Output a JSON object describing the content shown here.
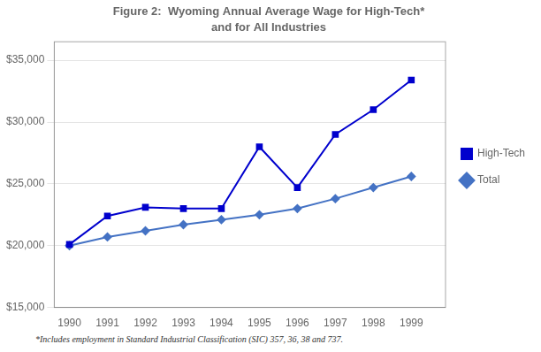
{
  "chart_data": {
    "type": "line",
    "title": "Figure 2:  Wyoming Annual Average Wage for High-Tech*",
    "subtitle": "and for All Industries",
    "annotations": [
      "*Includes employment in Standard Industrial Classification (SIC) 357, 36, 38 and 737."
    ],
    "x": [
      1990,
      1991,
      1992,
      1993,
      1994,
      1995,
      1996,
      1997,
      1998,
      1999
    ],
    "series": [
      {
        "name": "High-Tech",
        "color": "#0000CD",
        "marker": "square",
        "values": [
          20100,
          22400,
          23100,
          23000,
          23000,
          28000,
          24700,
          29000,
          31000,
          33400
        ]
      },
      {
        "name": "Total",
        "color": "#4472C4",
        "marker": "diamond",
        "values": [
          20000,
          20700,
          21200,
          21700,
          22100,
          22500,
          23000,
          23800,
          24700,
          25600
        ]
      }
    ],
    "xlim": [
      1989.6,
      1999.9
    ],
    "xticks": [
      1990,
      1991,
      1992,
      1993,
      1994,
      1995,
      1996,
      1997,
      1998,
      1999
    ],
    "ylim": [
      15000,
      36500
    ],
    "yticks": [
      {
        "value": 15000,
        "label": "$15,000"
      },
      {
        "value": 20000,
        "label": "$20,000"
      },
      {
        "value": 25000,
        "label": "$25,000"
      },
      {
        "value": 30000,
        "label": "$30,000"
      },
      {
        "value": 35000,
        "label": "$35,000"
      }
    ],
    "grid": "y",
    "legend": "right"
  }
}
